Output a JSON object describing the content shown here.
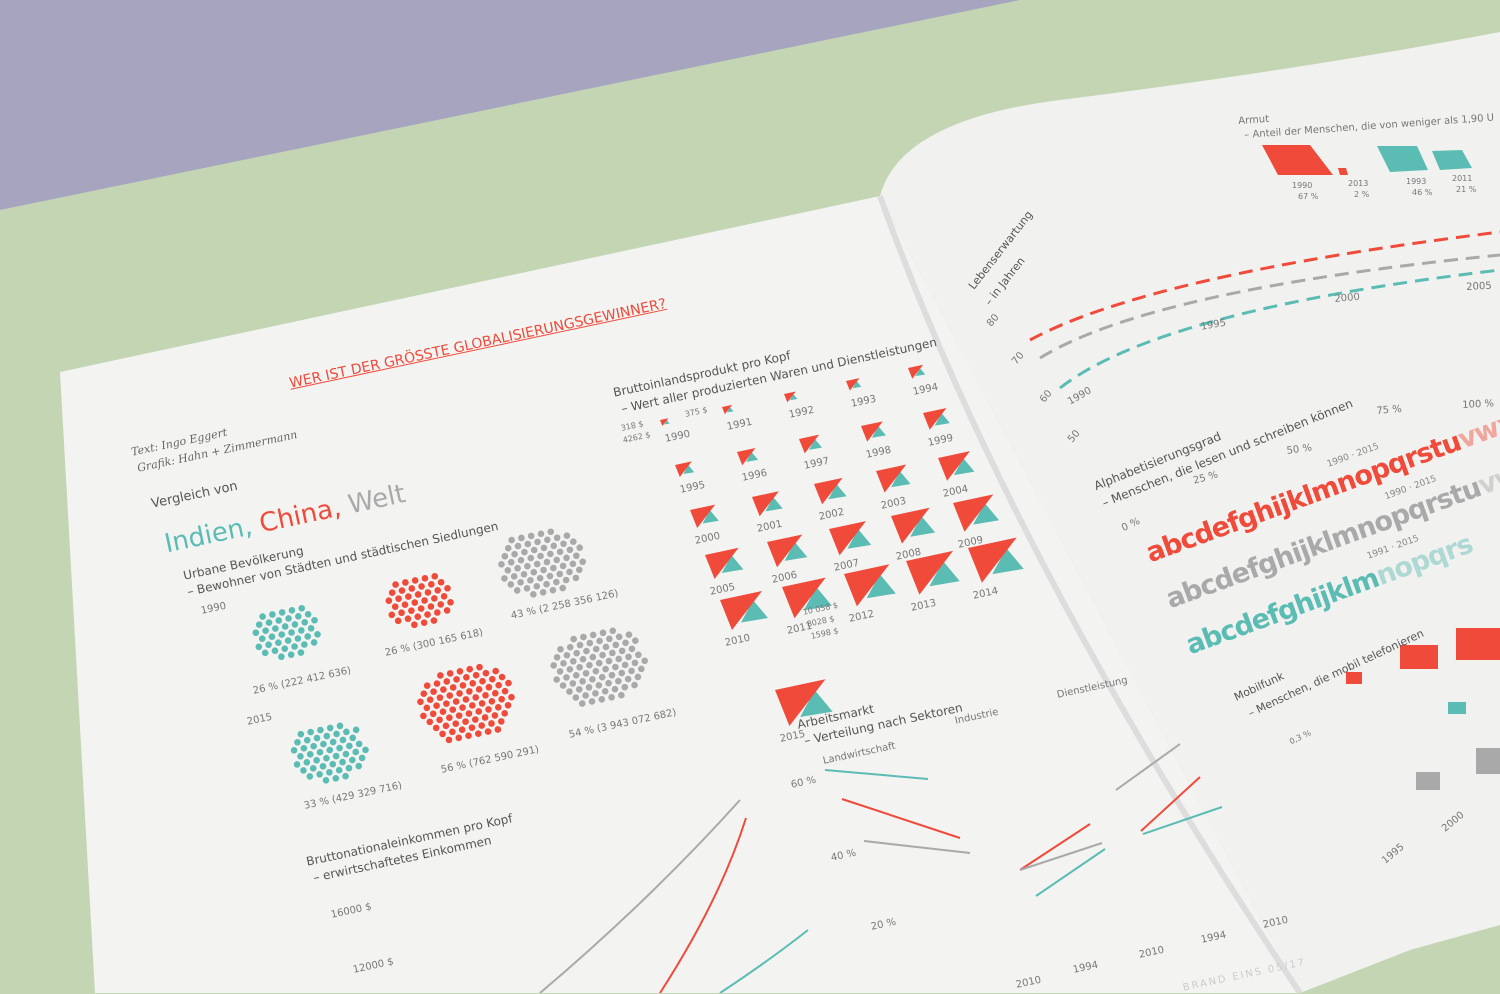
{
  "colors": {
    "india": "#5bbcb4",
    "china": "#f04a3a",
    "world": "#a9a9a9",
    "background_top": "#a7a4c0",
    "background": "#c4d5b4",
    "paper": "#f2f2f1"
  },
  "left_page": {
    "headline": "WER IST DER GRÖSSTE GLOBALISIERUNGSGEWINNER?",
    "credits": {
      "text": "Text: Ingo Eggert",
      "grafik": "Grafik: Hahn + Zimmermann"
    },
    "intro": "Vergleich von",
    "title": {
      "india": "Indien,",
      "china": "China,",
      "world": "Welt"
    },
    "urban": {
      "title": "Urbane Bevölkerung",
      "subtitle": "– Bewohner von Städten und städtischen Siedlungen",
      "years": [
        "1990",
        "2015"
      ],
      "groups": [
        {
          "year": "1990",
          "country": "india",
          "label": "26 % (222 412 636)",
          "share": 26
        },
        {
          "year": "1990",
          "country": "china",
          "label": "26 % (300 165 618)",
          "share": 26
        },
        {
          "year": "1990",
          "country": "world",
          "label": "43 % (2 258 356 126)",
          "share": 43
        },
        {
          "year": "2015",
          "country": "india",
          "label": "33 % (429 329 716)",
          "share": 33
        },
        {
          "year": "2015",
          "country": "china",
          "label": "56 % (762 590 291)",
          "share": 56
        },
        {
          "year": "2015",
          "country": "world",
          "label": "54 % (3 943 072 682)",
          "share": 54
        }
      ]
    },
    "gdp": {
      "title": "Bruttoinlandsprodukt pro Kopf",
      "subtitle": "– Wert aller produzierten Waren und Dienstleistungen",
      "first_labels": [
        "318 $",
        "4262 $",
        "375 $"
      ],
      "last_labels": [
        "10 058 $",
        "8028 $",
        "1598 $"
      ],
      "years": [
        "1990",
        "1991",
        "1992",
        "1993",
        "1994",
        "1995",
        "1996",
        "1997",
        "1998",
        "1999",
        "2000",
        "2001",
        "2002",
        "2003",
        "2004",
        "2005",
        "2006",
        "2007",
        "2008",
        "2009",
        "2010",
        "2011",
        "2012",
        "2013",
        "2014",
        "2015"
      ]
    },
    "gni": {
      "title": "Bruttonationaleinkommen pro Kopf",
      "subtitle": "– erwirtschaftetes Einkommen",
      "ticks": [
        "16000 $",
        "12000 $"
      ]
    },
    "labor": {
      "title": "Arbeitsmarkt",
      "subtitle": "– Verteilung nach Sektoren",
      "sectors": [
        "Landwirtschaft",
        "Industrie",
        "Dienstleistung"
      ],
      "ticks": [
        "60 %",
        "40 %",
        "20 %"
      ],
      "years": [
        "2010",
        "1994",
        "2010",
        "2010",
        "1994",
        "2010"
      ]
    },
    "footer": "BRAND EINS 05/17"
  },
  "right_page": {
    "poverty": {
      "title": "Armut",
      "subtitle": "– Anteil der Menschen, die von weniger als 1,90 U",
      "bars": [
        {
          "country": "china",
          "year": "1990",
          "label": "67 %",
          "value": 67
        },
        {
          "country": "china",
          "year": "2013",
          "label": "2 %",
          "value": 2
        },
        {
          "country": "india",
          "year": "1993",
          "label": "46 %",
          "value": 46
        },
        {
          "country": "india",
          "year": "2011",
          "label": "21 %",
          "value": 21
        }
      ]
    },
    "life": {
      "title": "Lebenserwartung",
      "subtitle": "– in Jahren",
      "ticks": [
        "80",
        "70",
        "60",
        "50"
      ],
      "years": [
        "1990",
        "1995",
        "2000",
        "2005"
      ]
    },
    "literacy": {
      "title": "Alphabetisierungsgrad",
      "subtitle": "– Menschen, die lesen und schreiben können",
      "ticks": [
        "0 %",
        "25 %",
        "50 %",
        "75 %",
        "100 %"
      ],
      "rows": [
        {
          "country": "china",
          "letters": "abcdefghijklmnopqrstu",
          "faded": "vwxy",
          "years": "1990 · 2015"
        },
        {
          "country": "world",
          "letters": "abcdefghijklmnopqrstu",
          "faded": "vw",
          "years": "1990 · 2015"
        },
        {
          "country": "india",
          "letters": "abcdefghijklm",
          "faded": "nopqrs",
          "years": "1991 · 2015"
        }
      ]
    },
    "mobile": {
      "title": "Mobilfunk",
      "subtitle": "– Menschen, die mobil telefonieren",
      "label": "0,3 %",
      "years": [
        "1995",
        "2000"
      ]
    }
  }
}
